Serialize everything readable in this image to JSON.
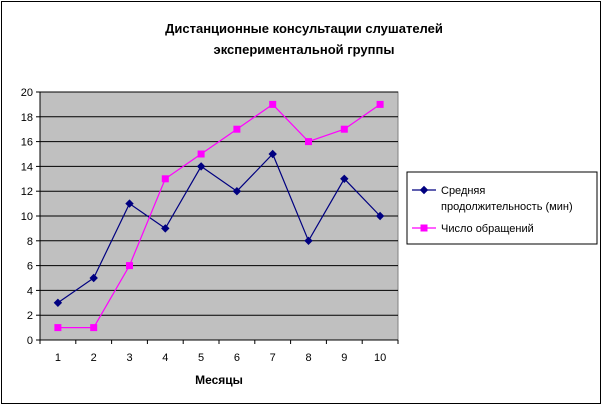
{
  "chart_data": {
    "type": "line",
    "title": [
      "Дистанционные консультации слушателей",
      "экспериментальной группы"
    ],
    "xlabel": "Месяцы",
    "ylabel": "",
    "categories": [
      "1",
      "2",
      "3",
      "4",
      "5",
      "6",
      "7",
      "8",
      "9",
      "10"
    ],
    "ylim": [
      0,
      20
    ],
    "yticks": [
      "0",
      "2",
      "4",
      "6",
      "8",
      "10",
      "12",
      "14",
      "16",
      "18",
      "20"
    ],
    "grid": "horizontal",
    "legend_position": "right",
    "plot_background": "#c0c0c0",
    "series": [
      {
        "name_lines": [
          "Средняя",
          "продолжительность (мин)"
        ],
        "color": "#000080",
        "marker": "diamond",
        "values": [
          3,
          5,
          11,
          9,
          14,
          12,
          15,
          8,
          13,
          10
        ]
      },
      {
        "name_lines": [
          "Число обращений"
        ],
        "color": "#ff00ff",
        "marker": "square",
        "values": [
          1,
          1,
          6,
          13,
          15,
          17,
          19,
          16,
          17,
          19
        ]
      }
    ]
  }
}
